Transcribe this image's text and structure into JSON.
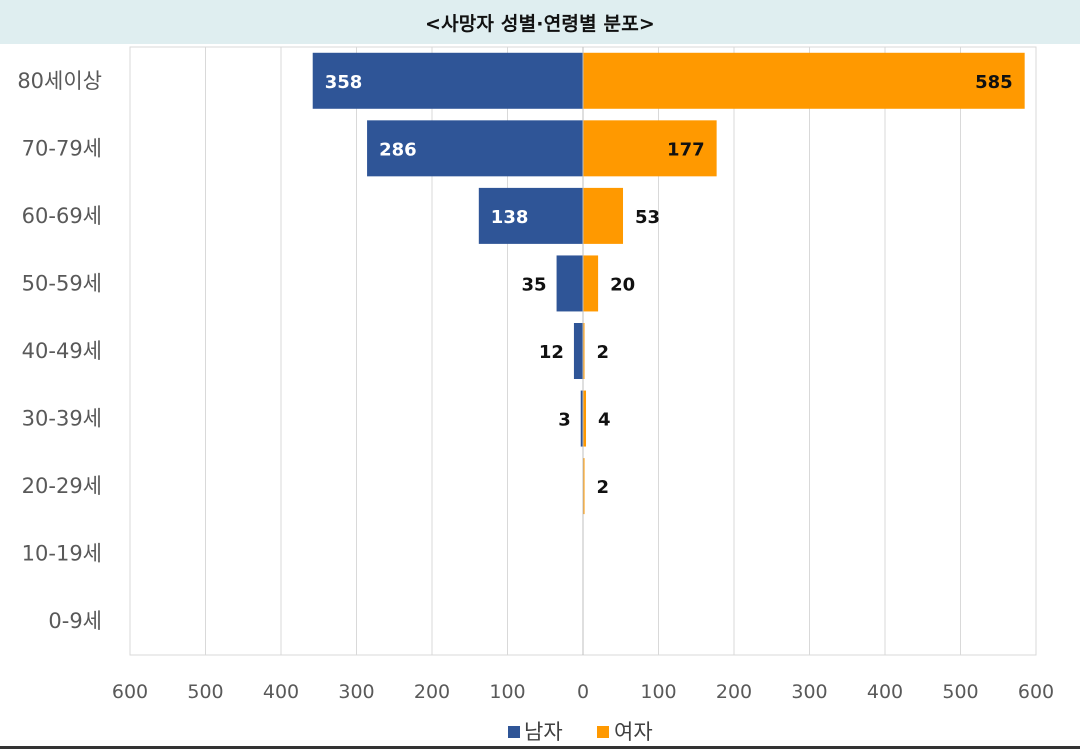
{
  "title": "<사망자 성별·연령별 분포>",
  "colors": {
    "male": "#2f5597",
    "female": "#ff9900",
    "grid": "#d9d9d9",
    "title_bg": "#dfeef0"
  },
  "chart_data": {
    "type": "bar",
    "orientation": "horizontal",
    "layout": "population-pyramid",
    "categories": [
      "80세이상",
      "70-79세",
      "60-69세",
      "50-59세",
      "40-49세",
      "30-39세",
      "20-29세",
      "10-19세",
      "0-9세"
    ],
    "series": [
      {
        "name": "남자",
        "color": "#2f5597",
        "values": [
          358,
          286,
          138,
          35,
          12,
          3,
          0,
          0,
          0
        ],
        "labels": [
          "358",
          "286",
          "138",
          "35",
          "12",
          "3",
          "",
          "",
          ""
        ]
      },
      {
        "name": "여자",
        "color": "#ff9900",
        "values": [
          585,
          177,
          53,
          20,
          2,
          4,
          2,
          0,
          0
        ],
        "labels": [
          "585",
          "177",
          "53",
          "20",
          "2",
          "4",
          "2",
          "",
          ""
        ]
      }
    ],
    "xlim": [
      -600,
      600
    ],
    "x_ticks": [
      -600,
      -500,
      -400,
      -300,
      -200,
      -100,
      0,
      100,
      200,
      300,
      400,
      500,
      600
    ],
    "x_tick_labels": [
      "600",
      "500",
      "400",
      "300",
      "200",
      "100",
      "0",
      "100",
      "200",
      "300",
      "400",
      "500",
      "600"
    ],
    "grid": true,
    "legend_position": "bottom"
  }
}
